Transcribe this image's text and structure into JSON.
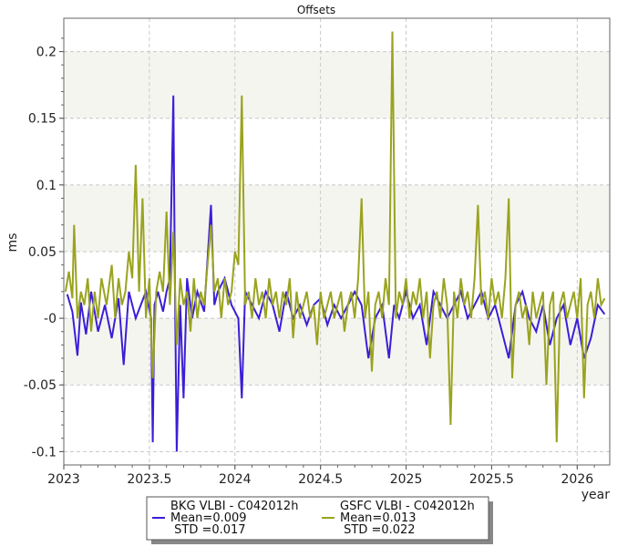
{
  "chart_data": {
    "type": "line",
    "title": "Offsets",
    "xlabel": "year",
    "ylabel": "ms",
    "xlim": [
      2023.0,
      2026.19
    ],
    "ylim": [
      -0.11,
      0.225
    ],
    "x_ticks": [
      2023,
      2023.5,
      2024,
      2024.5,
      2025,
      2025.5,
      2026
    ],
    "x_tick_labels": [
      "2023",
      "2023.5",
      "2024",
      "2024.5",
      "2025",
      "2025.5",
      "2026"
    ],
    "y_ticks": [
      -0.1,
      -0.05,
      0,
      0.05,
      0.1,
      0.15,
      0.2
    ],
    "y_tick_labels": [
      "-0.1",
      "-0.05",
      "-0",
      "0.05",
      "0.1",
      "0.15",
      "0.2"
    ],
    "grid": true,
    "shaded_bands": [
      [
        -0.05,
        0.0
      ],
      [
        0.05,
        0.1
      ],
      [
        0.15,
        0.2
      ]
    ],
    "legend_position": "bottom-center",
    "series": [
      {
        "name": "BKG VLBI - C042012h",
        "mean_label": "Mean=0.009",
        "std_label": " STD =0.017",
        "color": "#3a1fd6",
        "points": [
          [
            2023.02,
            0.018
          ],
          [
            2023.05,
            0.005
          ],
          [
            2023.08,
            -0.028
          ],
          [
            2023.1,
            0.012
          ],
          [
            2023.13,
            -0.012
          ],
          [
            2023.16,
            0.02
          ],
          [
            2023.2,
            -0.01
          ],
          [
            2023.24,
            0.01
          ],
          [
            2023.28,
            -0.015
          ],
          [
            2023.32,
            0.015
          ],
          [
            2023.35,
            -0.035
          ],
          [
            2023.38,
            0.02
          ],
          [
            2023.42,
            0.0
          ],
          [
            2023.45,
            0.01
          ],
          [
            2023.48,
            0.02
          ],
          [
            2023.51,
            0.0
          ],
          [
            2023.52,
            -0.093
          ],
          [
            2023.53,
            0.01
          ],
          [
            2023.55,
            0.02
          ],
          [
            2023.58,
            0.005
          ],
          [
            2023.6,
            0.02
          ],
          [
            2023.62,
            0.03
          ],
          [
            2023.64,
            0.167
          ],
          [
            2023.65,
            0.012
          ],
          [
            2023.66,
            -0.1
          ],
          [
            2023.68,
            0.01
          ],
          [
            2023.7,
            -0.06
          ],
          [
            2023.72,
            0.03
          ],
          [
            2023.75,
            0.0
          ],
          [
            2023.78,
            0.02
          ],
          [
            2023.82,
            0.005
          ],
          [
            2023.86,
            0.085
          ],
          [
            2023.88,
            0.01
          ],
          [
            2023.9,
            0.02
          ],
          [
            2023.94,
            0.03
          ],
          [
            2023.98,
            0.01
          ],
          [
            2024.02,
            0.0
          ],
          [
            2024.04,
            -0.06
          ],
          [
            2024.06,
            0.02
          ],
          [
            2024.1,
            0.01
          ],
          [
            2024.14,
            0.0
          ],
          [
            2024.18,
            0.02
          ],
          [
            2024.22,
            0.01
          ],
          [
            2024.26,
            -0.01
          ],
          [
            2024.3,
            0.02
          ],
          [
            2024.34,
            0.0
          ],
          [
            2024.38,
            0.01
          ],
          [
            2024.42,
            -0.005
          ],
          [
            2024.46,
            0.01
          ],
          [
            2024.5,
            0.015
          ],
          [
            2024.54,
            -0.005
          ],
          [
            2024.58,
            0.01
          ],
          [
            2024.62,
            0.0
          ],
          [
            2024.66,
            0.01
          ],
          [
            2024.7,
            0.02
          ],
          [
            2024.74,
            0.01
          ],
          [
            2024.78,
            -0.03
          ],
          [
            2024.82,
            0.0
          ],
          [
            2024.86,
            0.01
          ],
          [
            2024.9,
            -0.03
          ],
          [
            2024.93,
            0.01
          ],
          [
            2024.96,
            0.0
          ],
          [
            2025.0,
            0.02
          ],
          [
            2025.04,
            0.0
          ],
          [
            2025.08,
            0.01
          ],
          [
            2025.12,
            -0.02
          ],
          [
            2025.16,
            0.02
          ],
          [
            2025.2,
            0.01
          ],
          [
            2025.24,
            0.0
          ],
          [
            2025.28,
            0.01
          ],
          [
            2025.32,
            0.02
          ],
          [
            2025.36,
            0.0
          ],
          [
            2025.4,
            0.01
          ],
          [
            2025.44,
            0.02
          ],
          [
            2025.48,
            0.0
          ],
          [
            2025.52,
            0.01
          ],
          [
            2025.56,
            -0.01
          ],
          [
            2025.6,
            -0.03
          ],
          [
            2025.64,
            0.01
          ],
          [
            2025.68,
            0.02
          ],
          [
            2025.72,
            0.0
          ],
          [
            2025.76,
            -0.01
          ],
          [
            2025.8,
            0.01
          ],
          [
            2025.84,
            -0.02
          ],
          [
            2025.88,
            0.0
          ],
          [
            2025.92,
            0.01
          ],
          [
            2025.96,
            -0.02
          ],
          [
            2026.0,
            0.0
          ],
          [
            2026.04,
            -0.03
          ],
          [
            2026.08,
            -0.015
          ],
          [
            2026.12,
            0.01
          ],
          [
            2026.16,
            0.003
          ]
        ]
      },
      {
        "name": "GSFC VLBI - C042012h",
        "mean_label": "Mean=0.013",
        "std_label": " STD =0.022",
        "color": "#9aa31f",
        "points": [
          [
            2023.01,
            0.02
          ],
          [
            2023.03,
            0.035
          ],
          [
            2023.05,
            0.015
          ],
          [
            2023.06,
            0.07
          ],
          [
            2023.08,
            0.0
          ],
          [
            2023.1,
            0.02
          ],
          [
            2023.12,
            0.01
          ],
          [
            2023.14,
            0.03
          ],
          [
            2023.16,
            -0.01
          ],
          [
            2023.18,
            0.02
          ],
          [
            2023.2,
            0.0
          ],
          [
            2023.22,
            0.03
          ],
          [
            2023.25,
            0.01
          ],
          [
            2023.28,
            0.04
          ],
          [
            2023.3,
            0.0
          ],
          [
            2023.32,
            0.03
          ],
          [
            2023.34,
            0.01
          ],
          [
            2023.36,
            0.02
          ],
          [
            2023.38,
            0.05
          ],
          [
            2023.4,
            0.03
          ],
          [
            2023.42,
            0.115
          ],
          [
            2023.44,
            0.02
          ],
          [
            2023.46,
            0.09
          ],
          [
            2023.48,
            0.0
          ],
          [
            2023.5,
            0.03
          ],
          [
            2023.52,
            -0.045
          ],
          [
            2023.54,
            0.02
          ],
          [
            2023.56,
            0.035
          ],
          [
            2023.58,
            0.02
          ],
          [
            2023.6,
            0.08
          ],
          [
            2023.62,
            0.01
          ],
          [
            2023.64,
            0.065
          ],
          [
            2023.66,
            -0.02
          ],
          [
            2023.68,
            0.03
          ],
          [
            2023.7,
            0.01
          ],
          [
            2023.72,
            0.02
          ],
          [
            2023.74,
            -0.01
          ],
          [
            2023.76,
            0.03
          ],
          [
            2023.78,
            0.0
          ],
          [
            2023.8,
            0.02
          ],
          [
            2023.82,
            0.01
          ],
          [
            2023.84,
            0.04
          ],
          [
            2023.86,
            0.07
          ],
          [
            2023.88,
            0.02
          ],
          [
            2023.9,
            0.03
          ],
          [
            2023.92,
            0.0
          ],
          [
            2023.94,
            0.03
          ],
          [
            2023.96,
            0.01
          ],
          [
            2023.98,
            0.02
          ],
          [
            2024.0,
            0.05
          ],
          [
            2024.02,
            0.04
          ],
          [
            2024.04,
            0.167
          ],
          [
            2024.06,
            0.01
          ],
          [
            2024.08,
            0.02
          ],
          [
            2024.1,
            0.0
          ],
          [
            2024.12,
            0.03
          ],
          [
            2024.14,
            0.01
          ],
          [
            2024.16,
            0.02
          ],
          [
            2024.18,
            0.0
          ],
          [
            2024.2,
            0.03
          ],
          [
            2024.22,
            0.01
          ],
          [
            2024.24,
            0.02
          ],
          [
            2024.26,
            0.0
          ],
          [
            2024.28,
            0.02
          ],
          [
            2024.3,
            0.01
          ],
          [
            2024.32,
            0.03
          ],
          [
            2024.34,
            -0.015
          ],
          [
            2024.36,
            0.02
          ],
          [
            2024.38,
            0.0
          ],
          [
            2024.4,
            0.01
          ],
          [
            2024.42,
            0.02
          ],
          [
            2024.44,
            0.0
          ],
          [
            2024.46,
            0.01
          ],
          [
            2024.48,
            -0.02
          ],
          [
            2024.5,
            0.02
          ],
          [
            2024.52,
            0.0
          ],
          [
            2024.54,
            0.01
          ],
          [
            2024.56,
            0.02
          ],
          [
            2024.58,
            0.0
          ],
          [
            2024.6,
            0.01
          ],
          [
            2024.62,
            0.02
          ],
          [
            2024.64,
            -0.01
          ],
          [
            2024.66,
            0.01
          ],
          [
            2024.68,
            0.02
          ],
          [
            2024.7,
            0.0
          ],
          [
            2024.72,
            0.03
          ],
          [
            2024.74,
            0.09
          ],
          [
            2024.76,
            0.0
          ],
          [
            2024.78,
            0.02
          ],
          [
            2024.8,
            -0.04
          ],
          [
            2024.82,
            0.01
          ],
          [
            2024.84,
            0.02
          ],
          [
            2024.86,
            0.0
          ],
          [
            2024.88,
            0.03
          ],
          [
            2024.9,
            0.01
          ],
          [
            2024.92,
            0.215
          ],
          [
            2024.94,
            0.0
          ],
          [
            2024.96,
            0.02
          ],
          [
            2024.98,
            0.01
          ],
          [
            2025.0,
            0.03
          ],
          [
            2025.02,
            0.0
          ],
          [
            2025.04,
            0.02
          ],
          [
            2025.06,
            0.01
          ],
          [
            2025.08,
            0.03
          ],
          [
            2025.1,
            0.0
          ],
          [
            2025.12,
            0.02
          ],
          [
            2025.14,
            -0.03
          ],
          [
            2025.16,
            0.01
          ],
          [
            2025.18,
            0.02
          ],
          [
            2025.2,
            0.0
          ],
          [
            2025.22,
            0.03
          ],
          [
            2025.24,
            0.01
          ],
          [
            2025.26,
            -0.08
          ],
          [
            2025.28,
            0.02
          ],
          [
            2025.3,
            0.0
          ],
          [
            2025.32,
            0.03
          ],
          [
            2025.34,
            0.01
          ],
          [
            2025.36,
            0.02
          ],
          [
            2025.38,
            0.0
          ],
          [
            2025.4,
            0.03
          ],
          [
            2025.42,
            0.085
          ],
          [
            2025.44,
            0.01
          ],
          [
            2025.46,
            0.02
          ],
          [
            2025.48,
            0.0
          ],
          [
            2025.5,
            0.03
          ],
          [
            2025.52,
            0.01
          ],
          [
            2025.54,
            0.02
          ],
          [
            2025.56,
            0.0
          ],
          [
            2025.58,
            0.03
          ],
          [
            2025.6,
            0.09
          ],
          [
            2025.62,
            -0.045
          ],
          [
            2025.64,
            0.01
          ],
          [
            2025.66,
            0.02
          ],
          [
            2025.68,
            0.0
          ],
          [
            2025.7,
            0.01
          ],
          [
            2025.72,
            -0.02
          ],
          [
            2025.74,
            0.02
          ],
          [
            2025.76,
            0.0
          ],
          [
            2025.78,
            0.01
          ],
          [
            2025.8,
            0.02
          ],
          [
            2025.82,
            -0.05
          ],
          [
            2025.84,
            0.01
          ],
          [
            2025.86,
            0.02
          ],
          [
            2025.88,
            -0.093
          ],
          [
            2025.9,
            0.01
          ],
          [
            2025.92,
            0.02
          ],
          [
            2025.94,
            0.0
          ],
          [
            2025.96,
            0.01
          ],
          [
            2025.98,
            0.02
          ],
          [
            2026.0,
            0.0
          ],
          [
            2026.02,
            0.03
          ],
          [
            2026.04,
            -0.06
          ],
          [
            2026.06,
            0.01
          ],
          [
            2026.08,
            0.02
          ],
          [
            2026.1,
            0.0
          ],
          [
            2026.12,
            0.03
          ],
          [
            2026.14,
            0.01
          ],
          [
            2026.16,
            0.015
          ]
        ]
      }
    ]
  }
}
